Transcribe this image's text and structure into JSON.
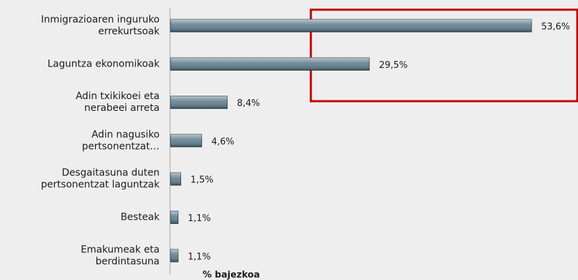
{
  "chart_data": {
    "type": "bar",
    "orientation": "horizontal",
    "categories": [
      [
        "Inmigrazioaren inguruko",
        "errekurtsoak"
      ],
      [
        "Laguntza ekonomikoak"
      ],
      [
        "Adin txikikoei eta",
        "nerabeei arreta"
      ],
      [
        "Adin nagusiko",
        "pertsonentzat…"
      ],
      [
        "Desgaitasuna duten",
        "pertsonentzat laguntzak"
      ],
      [
        "Besteak"
      ],
      [
        "Emakumeak eta",
        "berdintasuna"
      ]
    ],
    "values": [
      53.6,
      29.5,
      8.4,
      4.6,
      1.5,
      1.1,
      1.1
    ],
    "value_labels": [
      "53,6%",
      "29,5%",
      "8,4%",
      "4,6%",
      "1,5%",
      "1,1%",
      "1,1%"
    ],
    "color": "#5f7d8e",
    "xlabel": "% bajezkoa"
  }
}
